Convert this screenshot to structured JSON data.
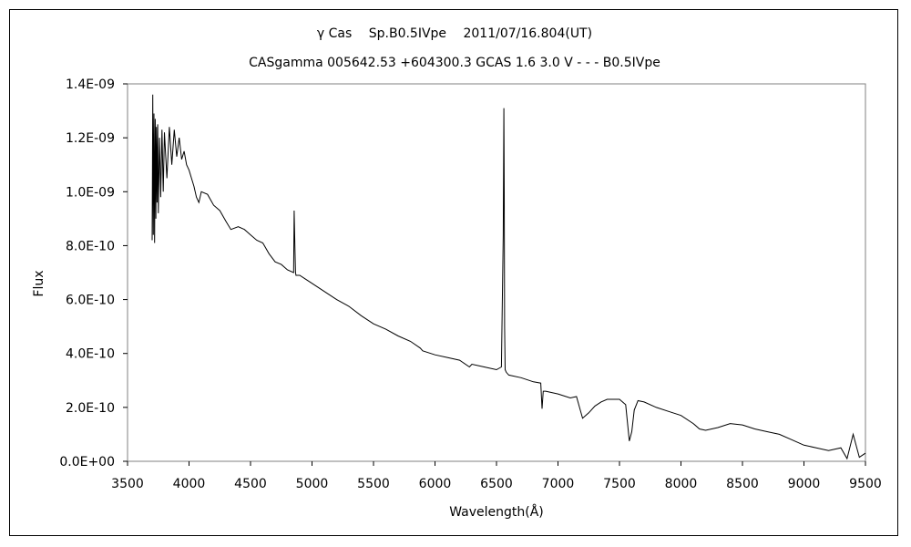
{
  "chart_data": {
    "type": "line",
    "title": "γ Cas　 Sp.B0.5IVpe　 2011/07/16.804(UT)",
    "subtitle": "CASgamma 005642.53 +604300.3 GCAS 1.6 3.0 V - - - B0.5IVpe",
    "xlabel": "Wavelength(Å)",
    "ylabel": "Flux",
    "xlim": [
      3500,
      9500
    ],
    "ylim": [
      0,
      1.4e-09
    ],
    "x_ticks": [
      3500,
      4000,
      4500,
      5000,
      5500,
      6000,
      6500,
      7000,
      7500,
      8000,
      8500,
      9000,
      9500
    ],
    "x_tick_labels": [
      "3500",
      "4000",
      "4500",
      "5000",
      "5500",
      "6000",
      "6500",
      "7000",
      "7500",
      "8000",
      "8500",
      "9000",
      "9500"
    ],
    "y_ticks": [
      0,
      2e-10,
      4e-10,
      6e-10,
      8e-10,
      1e-09,
      1.2e-09,
      1.4e-09
    ],
    "y_tick_labels": [
      "0.0E+00",
      "2.0E-10",
      "4.0E-10",
      "6.0E-10",
      "8.0E-10",
      "1.0E-09",
      "1.2E-09",
      "1.4E-09"
    ],
    "grid": false,
    "series": [
      {
        "color": "#000000",
        "x": [
          3700,
          3705,
          3710,
          3715,
          3720,
          3725,
          3730,
          3735,
          3740,
          3745,
          3750,
          3760,
          3770,
          3780,
          3790,
          3800,
          3820,
          3840,
          3860,
          3880,
          3900,
          3920,
          3940,
          3960,
          3980,
          4000,
          4020,
          4040,
          4060,
          4080,
          4100,
          4150,
          4200,
          4250,
          4300,
          4340,
          4400,
          4450,
          4500,
          4550,
          4600,
          4650,
          4700,
          4750,
          4800,
          4850,
          4855,
          4861,
          4866,
          4870,
          4900,
          4950,
          5000,
          5100,
          5200,
          5300,
          5400,
          5500,
          5600,
          5700,
          5800,
          5880,
          5900,
          6000,
          6100,
          6200,
          6280,
          6300,
          6400,
          6500,
          6540,
          6555,
          6560,
          6563,
          6566,
          6570,
          6580,
          6600,
          6700,
          6800,
          6860,
          6870,
          6880,
          6900,
          7000,
          7100,
          7150,
          7200,
          7250,
          7300,
          7350,
          7400,
          7500,
          7550,
          7580,
          7600,
          7620,
          7650,
          7700,
          7800,
          7900,
          8000,
          8100,
          8150,
          8200,
          8300,
          8400,
          8500,
          8600,
          8700,
          8800,
          8900,
          9000,
          9100,
          9200,
          9300,
          9350,
          9400,
          9450,
          9500
        ],
        "y": [
          8.2e-10,
          1.36e-09,
          8.4e-10,
          1.29e-09,
          8.1e-10,
          1.27e-09,
          9e-10,
          1.24e-09,
          9.6e-10,
          1.25e-09,
          9.2e-10,
          1.2e-09,
          9.8e-10,
          1.23e-09,
          1e-09,
          1.22e-09,
          1.05e-09,
          1.24e-09,
          1.1e-09,
          1.23e-09,
          1.13e-09,
          1.2e-09,
          1.12e-09,
          1.15e-09,
          1.1e-09,
          1.08e-09,
          1.05e-09,
          1.02e-09,
          9.8e-10,
          9.6e-10,
          1e-09,
          9.9e-10,
          9.5e-10,
          9.3e-10,
          8.9e-10,
          8.6e-10,
          8.7e-10,
          8.6e-10,
          8.4e-10,
          8.2e-10,
          8.1e-10,
          7.7e-10,
          7.4e-10,
          7.3e-10,
          7.1e-10,
          7e-10,
          9.3e-10,
          8e-10,
          7e-10,
          6.9e-10,
          6.9e-10,
          6.75e-10,
          6.6e-10,
          6.3e-10,
          6e-10,
          5.75e-10,
          5.4e-10,
          5.1e-10,
          4.9e-10,
          4.65e-10,
          4.45e-10,
          4.2e-10,
          4.1e-10,
          3.95e-10,
          3.85e-10,
          3.75e-10,
          3.5e-10,
          3.6e-10,
          3.5e-10,
          3.4e-10,
          3.5e-10,
          8.4e-10,
          1.31e-09,
          1e-09,
          5e-10,
          3.4e-10,
          3.3e-10,
          3.2e-10,
          3.1e-10,
          2.95e-10,
          2.9e-10,
          1.95e-10,
          2.6e-10,
          2.6e-10,
          2.5e-10,
          2.35e-10,
          2.4e-10,
          1.6e-10,
          1.8e-10,
          2.05e-10,
          2.2e-10,
          2.3e-10,
          2.3e-10,
          2.1e-10,
          7.5e-11,
          1.1e-10,
          1.9e-10,
          2.25e-10,
          2.2e-10,
          2e-10,
          1.85e-10,
          1.7e-10,
          1.4e-10,
          1.2e-10,
          1.15e-10,
          1.25e-10,
          1.4e-10,
          1.35e-10,
          1.2e-10,
          1.1e-10,
          1e-10,
          8e-11,
          6e-11,
          5e-11,
          4e-11,
          5e-11,
          1e-11,
          1e-10,
          1.5e-11,
          3e-11
        ]
      }
    ]
  }
}
